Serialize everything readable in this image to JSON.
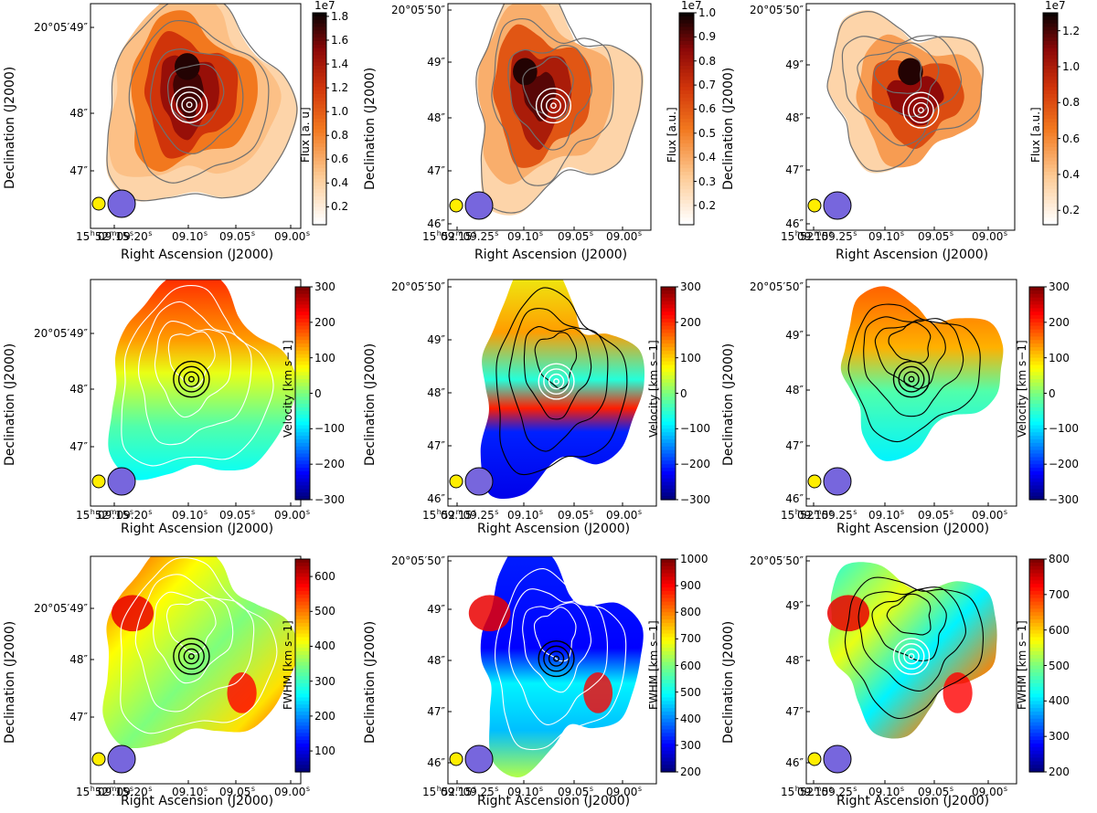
{
  "figure": {
    "xlabel": "Right Ascension (J2000)",
    "ylabel": "Declination (J2000)"
  },
  "chart_data": [
    {
      "id": "p11",
      "type": "heatmap",
      "map": "flux",
      "cmap": "heat",
      "title": "",
      "xlabel": "Right Ascension (J2000)",
      "ylabel": "Declination (J2000)",
      "xticks": [
        "15h52m09.20s",
        "09.15s",
        "09.10s",
        "09.05s",
        "09.00s"
      ],
      "yticks": [
        "20°05′49″",
        "48″",
        "47″"
      ],
      "colorbar": {
        "label": "Flux [a. u]",
        "scale": "1e7",
        "ticks": [
          "0.2",
          "0.4",
          "0.6",
          "0.8",
          "1.0",
          "1.2",
          "1.4",
          "1.6",
          "1.8"
        ],
        "vmin": 0.05,
        "vmax": 1.83
      },
      "contours": "grey",
      "center_contours": "white"
    },
    {
      "id": "p12",
      "type": "heatmap",
      "map": "flux",
      "cmap": "heat",
      "title": "",
      "xlabel": "Right Ascension (J2000)",
      "ylabel": "Declination (J2000)",
      "xticks": [
        "15h52m09.25s",
        "09.20s",
        "09.15s",
        "09.10s",
        "09.05s",
        "09.00s"
      ],
      "yticks": [
        "20°05′50″",
        "49″",
        "48″",
        "47″",
        "46″"
      ],
      "colorbar": {
        "label": "Flux [a.u.]",
        "scale": "1e7",
        "ticks": [
          "0.2",
          "0.3",
          "0.4",
          "0.5",
          "0.6",
          "0.7",
          "0.8",
          "0.9",
          "1.0"
        ],
        "vmin": 0.12,
        "vmax": 1.0
      },
      "contours": "grey",
      "center_contours": "white"
    },
    {
      "id": "p13",
      "type": "heatmap",
      "map": "flux",
      "cmap": "heat",
      "title": "",
      "xlabel": "Right Ascension (J2000)",
      "ylabel": "Declination (J2000)",
      "xticks": [
        "15h52m09.25s",
        "09.20s",
        "09.15s",
        "09.10s",
        "09.05s",
        "09.00s"
      ],
      "yticks": [
        "20°05′50″",
        "49″",
        "48″",
        "47″",
        "46″"
      ],
      "colorbar": {
        "label": "Flux [a.u.]",
        "scale": "1e7",
        "ticks": [
          "0.2",
          "0.4",
          "0.6",
          "0.8",
          "1.0",
          "1.2"
        ],
        "vmin": 0.12,
        "vmax": 1.3
      },
      "contours": "grey",
      "center_contours": "white"
    },
    {
      "id": "p21",
      "type": "heatmap",
      "map": "velocity",
      "cmap": "jet",
      "title": "",
      "xlabel": "Right Ascension (J2000)",
      "ylabel": "Declination (J2000)",
      "xticks": [
        "15h52m09.20s",
        "09.15s",
        "09.10s",
        "09.05s",
        "09.00s"
      ],
      "yticks": [
        "20°05′49″",
        "48″",
        "47″"
      ],
      "colorbar": {
        "label": "Velocity [km s−1]",
        "ticks": [
          "300",
          "200",
          "100",
          "0",
          "−100",
          "−200",
          "−300"
        ],
        "vmin": -300,
        "vmax": 300
      },
      "contours": "white",
      "center_contours": "black"
    },
    {
      "id": "p22",
      "type": "heatmap",
      "map": "velocity",
      "cmap": "jet",
      "title": "",
      "xlabel": "Right Ascension (J2000)",
      "ylabel": "Declination (J2000)",
      "xticks": [
        "15h52m09.25s",
        "09.20s",
        "09.15s",
        "09.10s",
        "09.05s",
        "09.00s"
      ],
      "yticks": [
        "20°05′50″",
        "49″",
        "48″",
        "47″",
        "46″"
      ],
      "colorbar": {
        "label": "Velocity [km s−1]",
        "ticks": [
          "300",
          "200",
          "100",
          "0",
          "−100",
          "−200",
          "−300"
        ],
        "vmin": -300,
        "vmax": 300
      },
      "contours": "black",
      "center_contours": "white"
    },
    {
      "id": "p23",
      "type": "heatmap",
      "map": "velocity",
      "cmap": "jet",
      "title": "",
      "xlabel": "Right Ascension (J2000)",
      "ylabel": "Declination (J2000)",
      "xticks": [
        "15h52m09.25s",
        "09.20s",
        "09.15s",
        "09.10s",
        "09.05s",
        "09.00s"
      ],
      "yticks": [
        "20°05′50″",
        "49″",
        "48″",
        "47″",
        "46″"
      ],
      "colorbar": {
        "label": "Velocity [km s−1]",
        "ticks": [
          "300",
          "200",
          "100",
          "0",
          "−100",
          "−200",
          "−300"
        ],
        "vmin": -300,
        "vmax": 300
      },
      "contours": "black",
      "center_contours": "black"
    },
    {
      "id": "p31",
      "type": "heatmap",
      "map": "fwhm",
      "cmap": "jet",
      "title": "",
      "xlabel": "Right Ascension (J2000)",
      "ylabel": "Declination (J2000)",
      "xticks": [
        "15h52m09.20s",
        "09.15s",
        "09.10s",
        "09.05s",
        "09.00s"
      ],
      "yticks": [
        "20°05′49″",
        "48″",
        "47″"
      ],
      "colorbar": {
        "label": "FWHM [km s−1]",
        "ticks": [
          "600",
          "500",
          "400",
          "300",
          "200",
          "100"
        ],
        "vmin": 40,
        "vmax": 650
      },
      "contours": "white",
      "center_contours": "black"
    },
    {
      "id": "p32",
      "type": "heatmap",
      "map": "fwhm",
      "cmap": "jet",
      "title": "",
      "xlabel": "Right Ascension (J2000)",
      "ylabel": "Declination (J2000)",
      "xticks": [
        "15h52m09.25s",
        "09.20s",
        "09.15s",
        "09.10s",
        "09.05s",
        "09.00s"
      ],
      "yticks": [
        "20°05′50″",
        "49″",
        "48″",
        "47″",
        "46″"
      ],
      "colorbar": {
        "label": "FWHM [km s−1]",
        "ticks": [
          "1000",
          "900",
          "800",
          "700",
          "600",
          "500",
          "400",
          "300",
          "200"
        ],
        "vmin": 200,
        "vmax": 1000
      },
      "contours": "white",
      "center_contours": "black"
    },
    {
      "id": "p33",
      "type": "heatmap",
      "map": "fwhm",
      "cmap": "jet",
      "title": "",
      "xlabel": "Right Ascension (J2000)",
      "ylabel": "Declination (J2000)",
      "xticks": [
        "15h52m09.25s",
        "09.20s",
        "09.15s",
        "09.10s",
        "09.05s",
        "09.00s"
      ],
      "yticks": [
        "20°05′50″",
        "49″",
        "48″",
        "47″",
        "46″"
      ],
      "colorbar": {
        "label": "FWHM [km s−1]",
        "ticks": [
          "800",
          "700",
          "600",
          "500",
          "400",
          "300",
          "200"
        ],
        "vmin": 200,
        "vmax": 800
      },
      "contours": "black",
      "center_contours": "white"
    }
  ],
  "beams": {
    "small_color": "#ffee00",
    "large_color": "#7766dd"
  }
}
